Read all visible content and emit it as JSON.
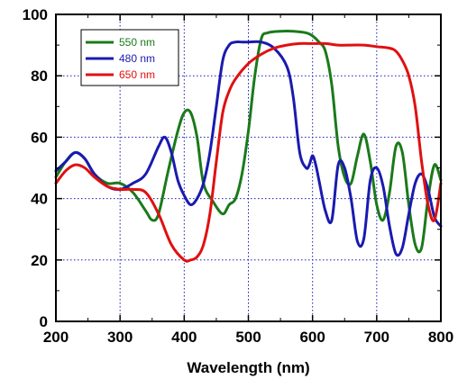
{
  "chart_data": {
    "type": "line",
    "title": "",
    "xlabel": "Wavelength (nm)",
    "ylabel": "",
    "xlim": [
      200,
      800
    ],
    "ylim": [
      0,
      100
    ],
    "xticks": [
      200,
      300,
      400,
      500,
      600,
      700,
      800
    ],
    "yticks": [
      0,
      20,
      40,
      60,
      80,
      100
    ],
    "grid": true,
    "legend_position": "top-left",
    "series": [
      {
        "name": "550 nm",
        "color": "#1a7a1a",
        "x": [
          200,
          215,
          230,
          245,
          260,
          280,
          300,
          320,
          340,
          350,
          360,
          375,
          390,
          400,
          410,
          420,
          430,
          445,
          460,
          470,
          480,
          490,
          500,
          510,
          520,
          530,
          550,
          570,
          590,
          600,
          610,
          620,
          630,
          640,
          650,
          660,
          670,
          680,
          690,
          700,
          710,
          720,
          730,
          740,
          750,
          760,
          770,
          780,
          790,
          800
        ],
        "y": [
          47,
          52,
          55,
          53,
          48,
          45,
          45,
          42,
          36,
          33,
          35,
          49,
          62,
          68,
          68,
          60,
          45,
          39,
          35,
          38,
          40,
          48,
          62,
          80,
          92,
          94,
          94.5,
          94.5,
          94,
          93,
          91,
          88,
          77,
          57,
          47,
          45,
          54,
          61,
          52,
          38,
          33,
          42,
          57,
          55,
          38,
          25,
          24,
          40,
          51,
          46
        ]
      },
      {
        "name": "480 nm",
        "color": "#1a1ab0",
        "x": [
          200,
          215,
          230,
          245,
          260,
          280,
          300,
          320,
          340,
          360,
          370,
          380,
          390,
          400,
          410,
          420,
          430,
          440,
          450,
          460,
          470,
          480,
          490,
          500,
          520,
          540,
          560,
          570,
          580,
          590,
          595,
          600,
          605,
          610,
          620,
          630,
          640,
          650,
          660,
          670,
          680,
          690,
          700,
          710,
          720,
          730,
          740,
          750,
          760,
          770,
          780,
          790,
          800
        ],
        "y": [
          49,
          52,
          55,
          53,
          48,
          44,
          43,
          45,
          48,
          57,
          60,
          55,
          46,
          41,
          38,
          40,
          45,
          55,
          70,
          85,
          90,
          91,
          91,
          91,
          91,
          89,
          83,
          73,
          55,
          50,
          51,
          54,
          51,
          46,
          36,
          33,
          51,
          50,
          40,
          26,
          27,
          46,
          50,
          44,
          31,
          22,
          24,
          35,
          45,
          48,
          43,
          34,
          31
        ]
      },
      {
        "name": "650 nm",
        "color": "#e01010",
        "x": [
          200,
          215,
          230,
          245,
          260,
          280,
          300,
          320,
          340,
          360,
          380,
          400,
          410,
          420,
          430,
          440,
          450,
          460,
          470,
          480,
          500,
          520,
          540,
          560,
          580,
          600,
          620,
          640,
          660,
          680,
          700,
          720,
          730,
          740,
          750,
          760,
          770,
          780,
          790,
          800
        ],
        "y": [
          45,
          49,
          51,
          50,
          47,
          44,
          43,
          43,
          42,
          35,
          25,
          20,
          20,
          21,
          25,
          35,
          52,
          68,
          75,
          79,
          84,
          87,
          89,
          90,
          90.5,
          90.5,
          90.5,
          90,
          90,
          90,
          89.5,
          89,
          88,
          85,
          80,
          70,
          52,
          38,
          33,
          45
        ]
      }
    ]
  }
}
